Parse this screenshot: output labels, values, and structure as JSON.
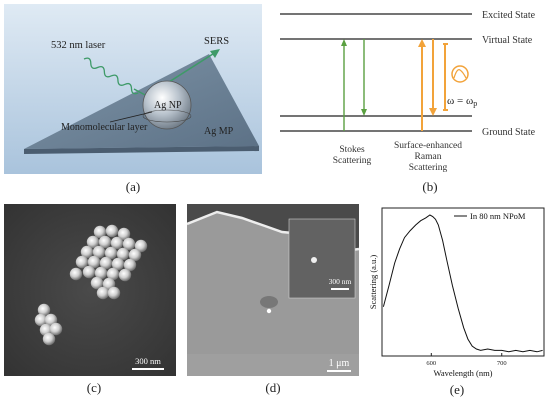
{
  "panel_a": {
    "caption": "(a)",
    "laser_label": "532 nm laser",
    "sers_label": "SERS",
    "np_label": "Ag NP",
    "monolayer_label": "Monomolecular layer",
    "mp_label": "Ag MP"
  },
  "panel_b": {
    "caption": "(b)",
    "excited_state": "Excited State",
    "virtual_state": "Virtual State",
    "ground_state": "Ground State",
    "stokes_line1": "Stokes",
    "stokes_line2": "Scattering",
    "se_line1": "Surface-enhanced",
    "se_line2": "Raman",
    "se_line3": "Scattering",
    "omega_eq": "ω = ω",
    "omega_sub": "p"
  },
  "panel_c": {
    "caption": "(c)",
    "scale": "300 nm"
  },
  "panel_d": {
    "caption": "(d)",
    "scale": "1 μm",
    "inset_scale": "300 nm"
  },
  "panel_e": {
    "caption": "(e)"
  },
  "chart_data": {
    "type": "line",
    "legend": "In 80 nm NPoM",
    "xlabel": "Wavelength (nm)",
    "ylabel": "Scattering (a.u.)",
    "x_ticks": [
      "600",
      "700"
    ],
    "xlim": [
      530,
      760
    ],
    "ylim": [
      0,
      1.05
    ],
    "series": [
      {
        "name": "In 80 nm NPoM",
        "x": [
          532,
          540,
          548,
          555,
          562,
          570,
          578,
          585,
          592,
          598,
          602,
          606,
          610,
          616,
          622,
          630,
          638,
          646,
          652,
          658,
          664,
          670,
          680,
          690,
          700,
          710,
          720,
          730,
          740,
          750,
          758
        ],
        "y": [
          0.35,
          0.5,
          0.66,
          0.76,
          0.84,
          0.89,
          0.93,
          0.96,
          0.98,
          1.0,
          0.99,
          0.97,
          0.93,
          0.82,
          0.68,
          0.5,
          0.34,
          0.2,
          0.12,
          0.07,
          0.05,
          0.04,
          0.05,
          0.04,
          0.04,
          0.03,
          0.04,
          0.03,
          0.04,
          0.03,
          0.04
        ]
      }
    ]
  }
}
